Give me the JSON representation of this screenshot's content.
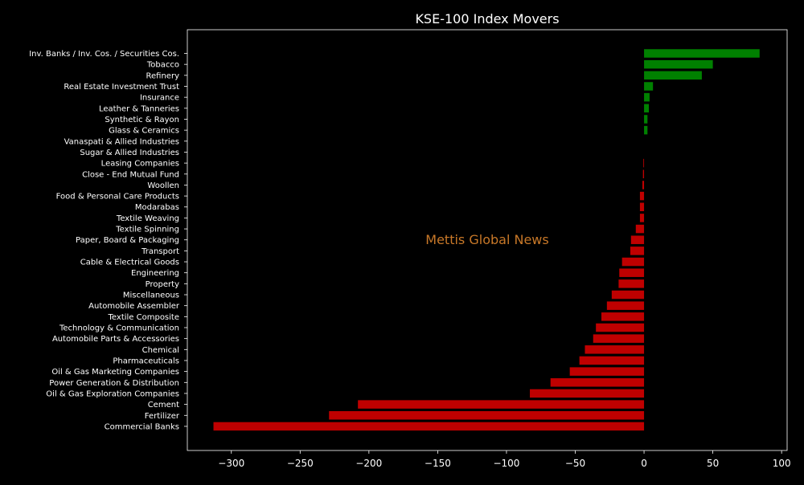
{
  "chart_data": {
    "type": "bar",
    "orientation": "horizontal",
    "title": "KSE-100 Index Movers",
    "watermark": "Mettis Global News",
    "xlim": [
      -332,
      104
    ],
    "xticks": [
      -300,
      -250,
      -200,
      -150,
      -100,
      -50,
      0,
      50,
      100
    ],
    "xtick_labels": [
      "−300",
      "−250",
      "−200",
      "−150",
      "−100",
      "−50",
      "0",
      "50",
      "100"
    ],
    "grid": false,
    "colors": {
      "positive": "#008000",
      "negative": "#bf0000",
      "background": "#000000",
      "text": "#ffffff",
      "watermark": "#c87828"
    },
    "categories": [
      "Inv. Banks / Inv. Cos. / Securities Cos.",
      "Tobacco",
      "Refinery",
      "Real Estate Investment Trust",
      "Insurance",
      "Leather & Tanneries",
      "Synthetic & Rayon",
      "Glass & Ceramics",
      "Vanaspati & Allied Industries",
      "Sugar & Allied Industries",
      "Leasing Companies",
      "Close - End Mutual Fund",
      "Woollen",
      "Food & Personal Care Products",
      "Modarabas",
      "Textile Weaving",
      "Textile Spinning",
      "Paper, Board & Packaging",
      "Transport",
      "Cable & Electrical Goods",
      "Engineering",
      "Property",
      "Miscellaneous",
      "Automobile Assembler",
      "Textile Composite",
      "Technology & Communication",
      "Automobile Parts & Accessories",
      "Chemical",
      "Pharmaceuticals",
      "Oil & Gas Marketing Companies",
      "Power Generation & Distribution",
      "Oil & Gas Exploration Companies",
      "Cement",
      "Fertilizer",
      "Commercial Banks"
    ],
    "values": [
      84,
      50,
      42,
      6.5,
      4,
      3.5,
      2.5,
      2.5,
      0,
      0,
      -0.5,
      -0.8,
      -1.2,
      -3,
      -3,
      -3,
      -6,
      -9.5,
      -10,
      -16,
      -18,
      -18.5,
      -23.5,
      -27,
      -31,
      -35,
      -37,
      -43,
      -47,
      -54,
      -68,
      -83,
      -208,
      -229,
      -313
    ]
  }
}
